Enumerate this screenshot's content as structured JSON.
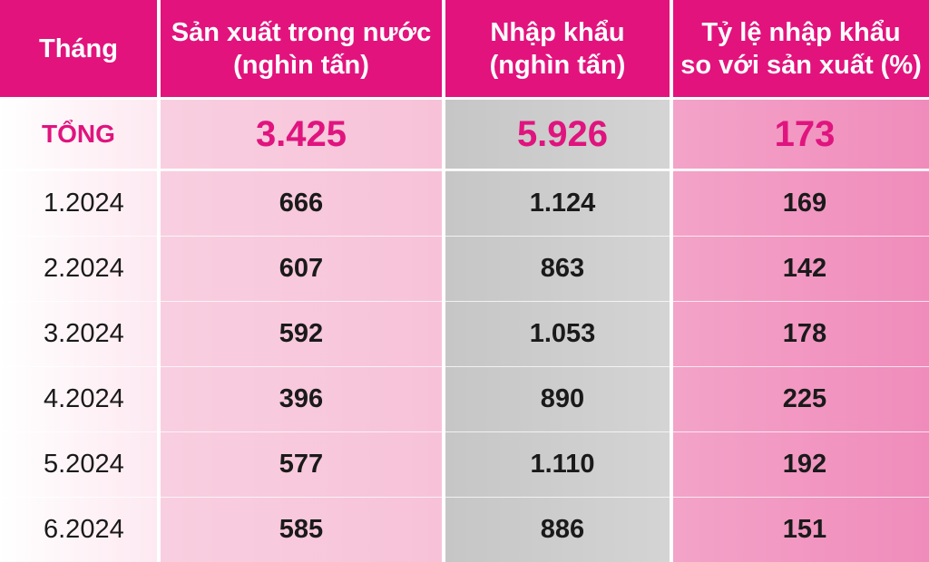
{
  "table": {
    "header": [
      [
        "Tháng"
      ],
      [
        "Sản xuất trong nước",
        "(nghìn tấn)"
      ],
      [
        "Nhập khẩu",
        "(nghìn tấn)"
      ],
      [
        "Tỷ lệ nhập khẩu",
        "so với sản xuất (%)"
      ]
    ],
    "total": [
      "TỔNG",
      "3.425",
      "5.926",
      "173"
    ],
    "rows": [
      [
        "1.2024",
        "666",
        "1.124",
        "169"
      ],
      [
        "2.2024",
        "607",
        "863",
        "142"
      ],
      [
        "3.2024",
        "592",
        "1.053",
        "178"
      ],
      [
        "4.2024",
        "396",
        "890",
        "225"
      ],
      [
        "5.2024",
        "577",
        "1.110",
        "192"
      ],
      [
        "6.2024",
        "585",
        "886",
        "151"
      ]
    ]
  }
}
